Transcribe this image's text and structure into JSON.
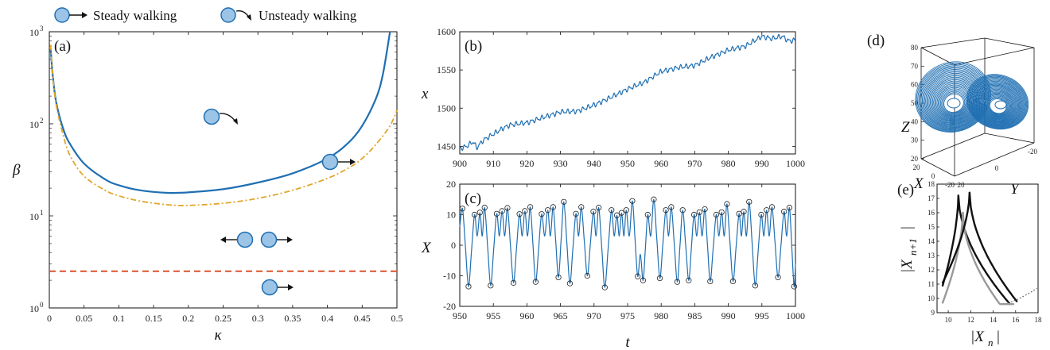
{
  "legend": {
    "steady_label": "Steady walking",
    "unsteady_label": "Unsteady walking"
  },
  "colors": {
    "blue": "#1f6fb2",
    "orange": "#e0a62c",
    "red": "#d9532b",
    "drop_fill": "#9cc4e6",
    "drop_stroke": "#1f6fb2"
  },
  "chart_data": [
    {
      "panel": "(a)",
      "type": "line",
      "xlabel": "κ",
      "ylabel": "β",
      "xlim": [
        0,
        0.5
      ],
      "ylim_log10": [
        0,
        3
      ],
      "yscale": "log",
      "xticks": [
        "0",
        "0.05",
        "0.1",
        "0.15",
        "0.2",
        "0.25",
        "0.3",
        "0.35",
        "0.4",
        "0.45",
        "0.5"
      ],
      "yticks": [
        {
          "base": "10",
          "exp": "0"
        },
        {
          "base": "10",
          "exp": "1"
        },
        {
          "base": "10",
          "exp": "2"
        },
        {
          "base": "10",
          "exp": "3"
        }
      ],
      "series": [
        {
          "style": "solid-blue",
          "x": [
            0.002,
            0.005,
            0.01,
            0.02,
            0.03,
            0.05,
            0.08,
            0.1,
            0.13,
            0.17,
            0.2,
            0.25,
            0.3,
            0.35,
            0.4,
            0.43,
            0.45,
            0.47,
            0.48,
            0.49
          ],
          "y": [
            650,
            330,
            170,
            88,
            60,
            37,
            25,
            21.5,
            19,
            17.8,
            18,
            19.5,
            23,
            29,
            42,
            62,
            95,
            190,
            350,
            1000
          ]
        },
        {
          "style": "dashdot-orange",
          "x": [
            0.002,
            0.005,
            0.01,
            0.02,
            0.03,
            0.05,
            0.08,
            0.1,
            0.13,
            0.17,
            0.2,
            0.25,
            0.3,
            0.35,
            0.4,
            0.43,
            0.45,
            0.47,
            0.49,
            0.5
          ],
          "y": [
            720,
            330,
            160,
            75,
            45,
            27,
            19,
            16.5,
            14.5,
            13.2,
            13,
            13.7,
            15.5,
            19,
            25.5,
            33,
            42,
            60,
            95,
            140
          ]
        },
        {
          "style": "dashed-red",
          "x": [
            0,
            0.5
          ],
          "y": [
            2.5,
            2.5
          ]
        }
      ]
    },
    {
      "panel": "(b)",
      "type": "line",
      "xlabel": "",
      "ylabel": "x",
      "xlim": [
        900,
        1000
      ],
      "ylim": [
        1440,
        1600
      ],
      "xticks": [
        "900",
        "910",
        "920",
        "930",
        "940",
        "950",
        "960",
        "970",
        "980",
        "990",
        "1000"
      ],
      "yticks": [
        "1450",
        "1500",
        "1550",
        "1600"
      ],
      "x": [
        900,
        902,
        904,
        905,
        907,
        910,
        913,
        915,
        920,
        925,
        930,
        935,
        940,
        945,
        950,
        955,
        960,
        965,
        970,
        975,
        980,
        985,
        990,
        993,
        996,
        998,
        1000
      ],
      "y": [
        1447,
        1450,
        1456,
        1448,
        1458,
        1466,
        1474,
        1478,
        1481,
        1488,
        1495,
        1496,
        1504,
        1514,
        1525,
        1534,
        1548,
        1553,
        1556,
        1567,
        1576,
        1581,
        1594,
        1591,
        1594,
        1588,
        1589
      ]
    },
    {
      "panel": "(c)",
      "type": "line",
      "xlabel": "t",
      "ylabel": "X",
      "xlim": [
        950,
        1000
      ],
      "ylim": [
        -20,
        20
      ],
      "xticks": [
        "950",
        "955",
        "960",
        "965",
        "970",
        "975",
        "980",
        "985",
        "990",
        "995",
        "1000"
      ],
      "yticks": [
        "-20",
        "-10",
        "0",
        "10",
        "20"
      ],
      "markers": "circles at local extrema",
      "extrema": [
        [
          950.4,
          12
        ],
        [
          951.3,
          -13.5
        ],
        [
          952.2,
          10
        ],
        [
          953.0,
          10.7
        ],
        [
          953.7,
          12.3
        ],
        [
          954.6,
          -13.2
        ],
        [
          955.5,
          10.3
        ],
        [
          956.3,
          11.2
        ],
        [
          957.1,
          12.2
        ],
        [
          958.0,
          -12.3
        ],
        [
          958.9,
          10.2
        ],
        [
          959.7,
          11.2
        ],
        [
          960.5,
          12.5
        ],
        [
          961.3,
          -12
        ],
        [
          962.2,
          10.2
        ],
        [
          963.1,
          11.5
        ],
        [
          963.9,
          12.5
        ],
        [
          964.7,
          -10.5
        ],
        [
          965.5,
          14.2
        ],
        [
          966.4,
          -12.5
        ],
        [
          967.3,
          10.3
        ],
        [
          968.1,
          12.5
        ],
        [
          969.0,
          -10
        ],
        [
          969.9,
          11
        ],
        [
          970.7,
          12.3
        ],
        [
          971.6,
          -13.8
        ],
        [
          972.6,
          11.5
        ],
        [
          973.4,
          9.8
        ],
        [
          974.1,
          10.6
        ],
        [
          974.8,
          11.5
        ],
        [
          975.7,
          14.5
        ],
        [
          976.5,
          -10.2
        ],
        [
          977.3,
          -11.5
        ],
        [
          978.0,
          10
        ],
        [
          978.9,
          15
        ],
        [
          979.8,
          -10.8
        ],
        [
          980.7,
          11.5
        ],
        [
          981.5,
          12.5
        ],
        [
          982.4,
          -12
        ],
        [
          983.2,
          11.5
        ],
        [
          984.1,
          -11.5
        ],
        [
          984.9,
          10
        ],
        [
          985.7,
          10.8
        ],
        [
          986.5,
          11.8
        ],
        [
          987.3,
          -11.8
        ],
        [
          988.2,
          10
        ],
        [
          989.0,
          10.8
        ],
        [
          989.8,
          13.5
        ],
        [
          990.7,
          -11.8
        ],
        [
          991.6,
          10.3
        ],
        [
          992.3,
          11
        ],
        [
          993.1,
          14.2
        ],
        [
          994.0,
          -13.2
        ],
        [
          994.9,
          10
        ],
        [
          995.7,
          11.5
        ],
        [
          996.5,
          12.5
        ],
        [
          997.4,
          -10.5
        ],
        [
          998.3,
          11
        ],
        [
          999.1,
          12.3
        ],
        [
          999.8,
          -13.5
        ]
      ]
    },
    {
      "panel": "(d)",
      "type": "line",
      "projection": "3d",
      "xlabel": "X",
      "ylabel": "Y",
      "zlabel": "Z",
      "zticks": [
        "20",
        "30",
        "40",
        "50",
        "60",
        "70",
        "80"
      ],
      "x_ticks": [
        "20",
        "0",
        "-20"
      ],
      "y_ticks": [
        "20",
        "0",
        "-20"
      ],
      "x_range": [
        -20,
        20
      ],
      "y_range": [
        -20,
        20
      ],
      "z_range": [
        20,
        80
      ],
      "description": "Lorenz-type double-lobe attractor"
    },
    {
      "panel": "(e)",
      "type": "scatter",
      "xlabel": "|X_n|",
      "ylabel": "|X_n+1|",
      "xlim": [
        9,
        18
      ],
      "ylim": [
        9,
        18
      ],
      "xticks": [
        "10",
        "12",
        "14",
        "16",
        "18"
      ],
      "yticks": [
        "9",
        "10",
        "11",
        "12",
        "13",
        "14",
        "15",
        "16",
        "17",
        "18"
      ],
      "description": "return map of successive maxima, three cusp-shaped branches"
    }
  ],
  "panel_labels": {
    "a": "(a)",
    "b": "(b)",
    "c": "(c)",
    "d": "(d)",
    "e": "(e)"
  },
  "axis_labels": {
    "kappa": "κ",
    "beta": "β",
    "x": "x",
    "X": "X",
    "t": "t",
    "Z3d": "Z",
    "X3d": "X",
    "Y3d": "Y",
    "Xn": "|X",
    "Xn_sub": "n",
    "Xn1": "|X",
    "Xn1_sub": "n+1"
  }
}
